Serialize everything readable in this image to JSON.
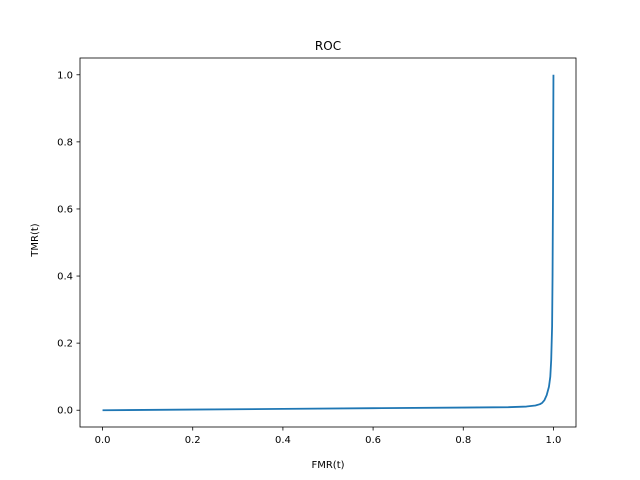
{
  "chart_data": {
    "type": "line",
    "title": "ROC",
    "xlabel": "FMR(t)",
    "ylabel": "TMR(t)",
    "xlim": [
      -0.05,
      1.05
    ],
    "ylim": [
      -0.05,
      1.05
    ],
    "xticks": [
      "0.0",
      "0.2",
      "0.4",
      "0.6",
      "0.8",
      "1.0"
    ],
    "yticks": [
      "0.0",
      "0.2",
      "0.4",
      "0.6",
      "0.8",
      "1.0"
    ],
    "grid": false,
    "legend": "none",
    "series": [
      {
        "color": "#1f77b4",
        "x": [
          0.0,
          0.2,
          0.4,
          0.6,
          0.8,
          0.9,
          0.94,
          0.96,
          0.97,
          0.975,
          0.98,
          0.985,
          0.99,
          0.993,
          0.995,
          0.997,
          0.998,
          0.999,
          1.0
        ],
        "y": [
          0.0,
          0.002,
          0.004,
          0.006,
          0.008,
          0.009,
          0.011,
          0.014,
          0.018,
          0.022,
          0.03,
          0.045,
          0.07,
          0.1,
          0.15,
          0.25,
          0.4,
          0.65,
          1.0
        ]
      }
    ]
  }
}
